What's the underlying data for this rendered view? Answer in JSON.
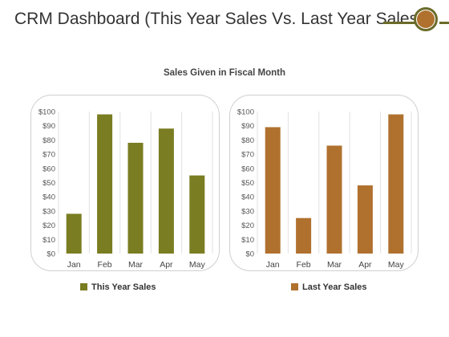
{
  "header": {
    "title": "CRM Dashboard (This Year Sales Vs. Last Year Sales)",
    "accent_color": "#6b6b2a",
    "accent_dot_color": "#b0712f"
  },
  "chart_data": [
    {
      "type": "bar",
      "title": "Sales Given in Fiscal Month",
      "categories": [
        "Jan",
        "Feb",
        "Mar",
        "Apr",
        "May"
      ],
      "series": [
        {
          "name": "This Year Sales",
          "values": [
            28,
            98,
            78,
            88,
            55
          ],
          "color": "#7a7d21"
        }
      ],
      "ylim": [
        0,
        100
      ],
      "yticks": [
        "$0",
        "$10",
        "$20",
        "$30",
        "$40",
        "$50",
        "$60",
        "$70",
        "$80",
        "$90",
        "$100"
      ],
      "grid": "vertical",
      "legend": "bottom"
    },
    {
      "type": "bar",
      "categories": [
        "Jan",
        "Feb",
        "Mar",
        "Apr",
        "May"
      ],
      "series": [
        {
          "name": "Last Year Sales",
          "values": [
            89,
            25,
            76,
            48,
            98
          ],
          "color": "#b0712f"
        }
      ],
      "ylim": [
        0,
        100
      ],
      "yticks": [
        "$0",
        "$10",
        "$20",
        "$30",
        "$40",
        "$50",
        "$60",
        "$70",
        "$80",
        "$90",
        "$100"
      ],
      "grid": "vertical",
      "legend": "bottom"
    }
  ]
}
